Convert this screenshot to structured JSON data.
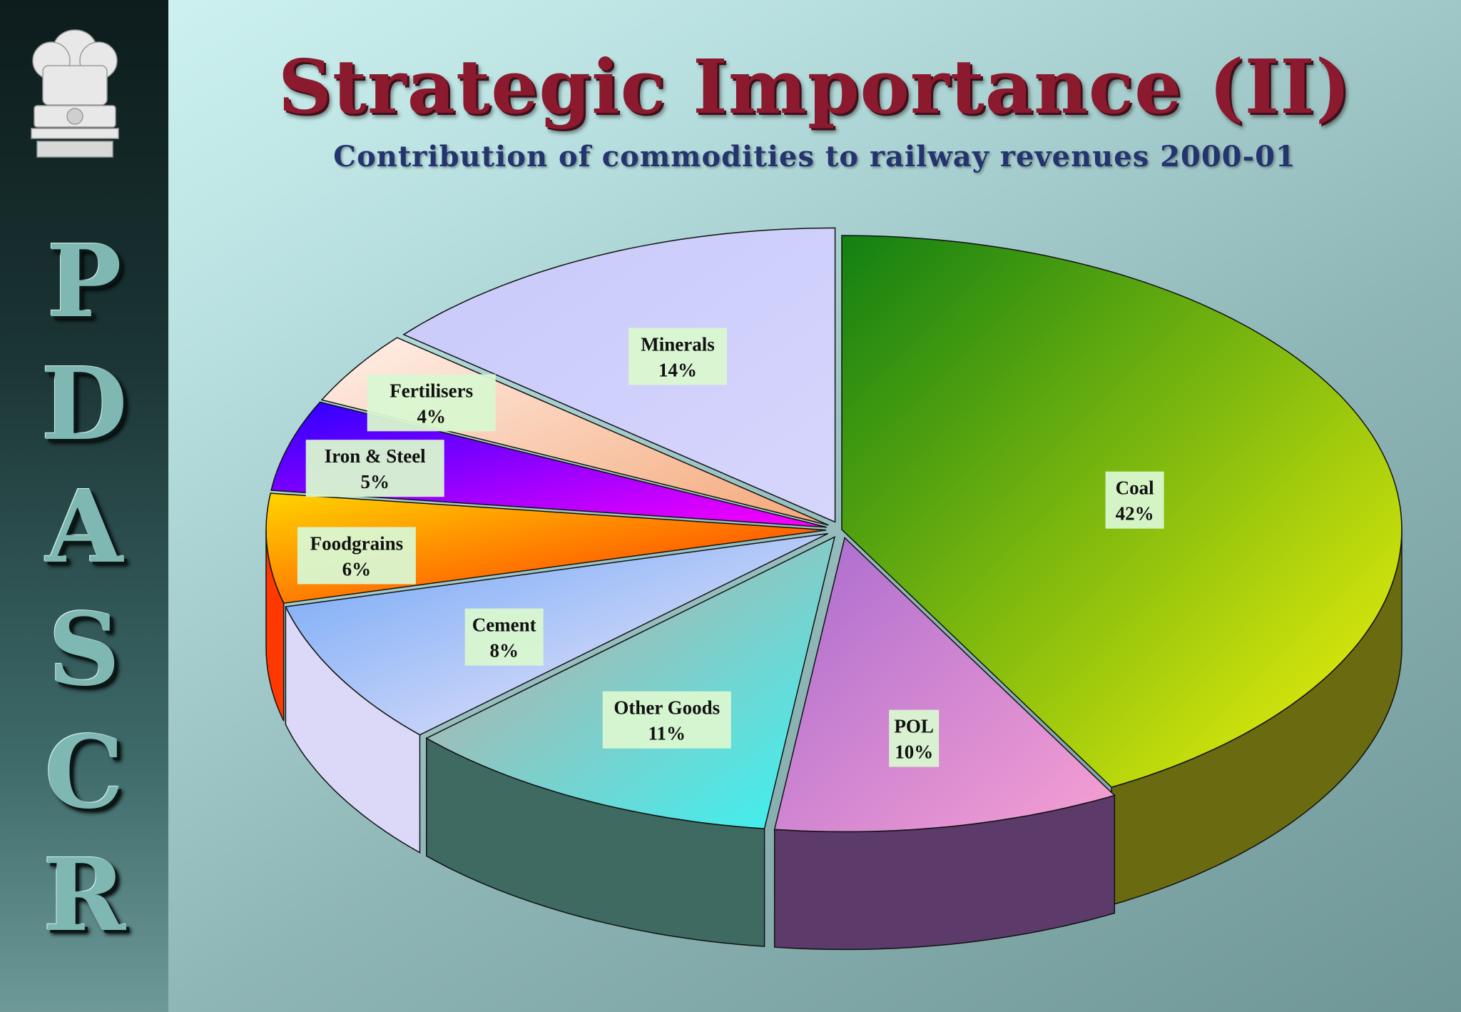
{
  "header": {
    "title": "Strategic Importance (II)",
    "subtitle": "Contribution of commodities to railway revenues 2000-01"
  },
  "sidebar": {
    "letters": [
      "P",
      "D",
      "A",
      "S",
      "C",
      "R"
    ]
  },
  "chart_data": {
    "type": "pie",
    "title": "",
    "style": "3d-exploded",
    "slices": [
      {
        "label": "Coal",
        "value": 42,
        "display": "42%",
        "colors": [
          "#128012",
          "#f4f60a"
        ],
        "side": "#6a6a10"
      },
      {
        "label": "POL",
        "value": 10,
        "display": "10%",
        "colors": [
          "#a96bd0",
          "#f7a0d2"
        ],
        "side": "#5c3a6a"
      },
      {
        "label": "Other Goods",
        "value": 11,
        "display": "11%",
        "colors": [
          "#d2a29a",
          "#36f4f4"
        ],
        "side": "#3e6a62"
      },
      {
        "label": "Cement",
        "value": 8,
        "display": "8%",
        "colors": [
          "#6fa6f6",
          "#f8ecfa"
        ],
        "side": "#dcd8f8"
      },
      {
        "label": "Foodgrains",
        "value": 6,
        "display": "6%",
        "colors": [
          "#ffd400",
          "#ff2a00"
        ],
        "side": "#ff3800"
      },
      {
        "label": "Iron & Steel",
        "value": 5,
        "display": "5%",
        "colors": [
          "#2a00ff",
          "#ff00ff"
        ],
        "side": "#4a10b0"
      },
      {
        "label": "Fertilisers",
        "value": 4,
        "display": "4%",
        "colors": [
          "#fff0ea",
          "#f4a878"
        ],
        "side": "#e8b090"
      },
      {
        "label": "Minerals",
        "value": 14,
        "display": "14%",
        "colors": [
          "#c9c9fb",
          "#d6d6fc"
        ],
        "side": "#a8a8e0"
      }
    ]
  }
}
